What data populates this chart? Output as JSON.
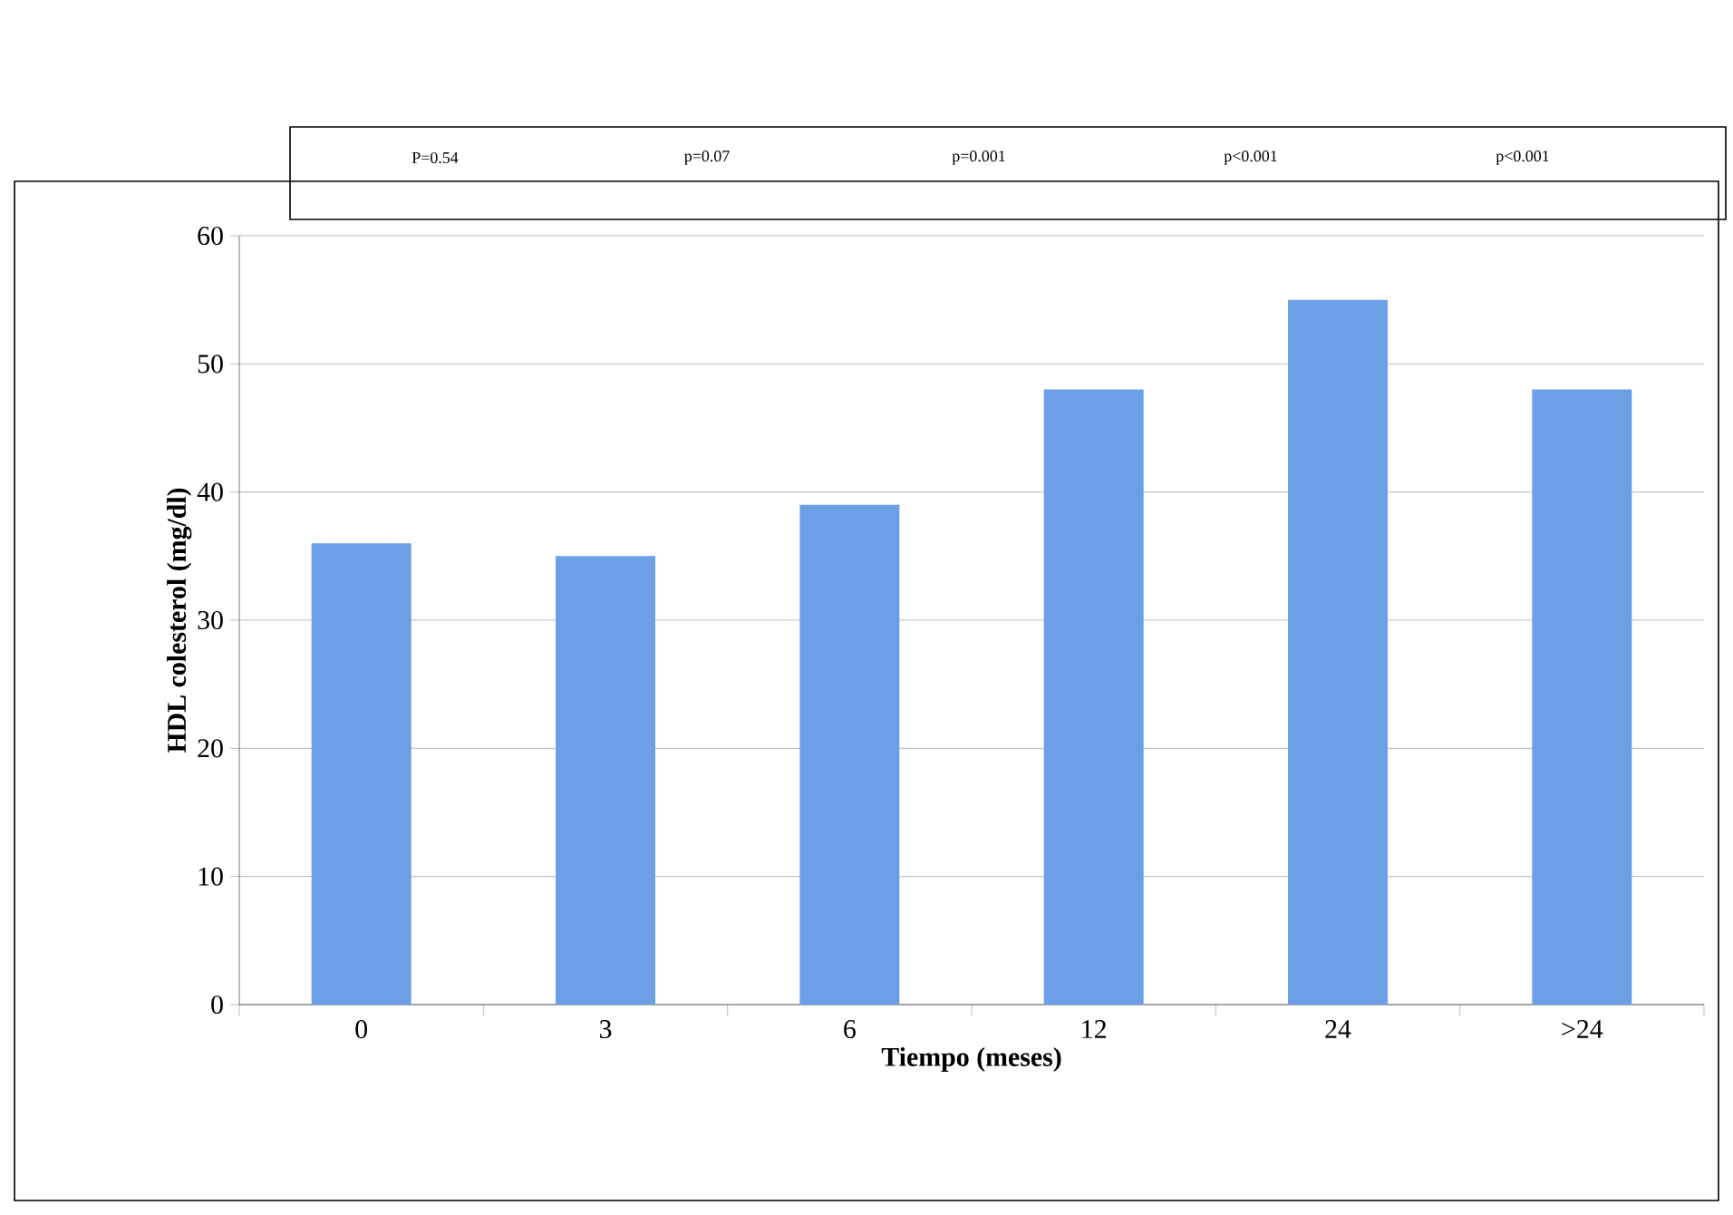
{
  "chart_data": {
    "type": "bar",
    "xlabel": "Tiempo (meses)",
    "ylabel": "HDL colesterol (mg/dl)",
    "categories": [
      "0",
      "3",
      "6",
      "12",
      "24",
      ">24"
    ],
    "values": [
      36,
      35,
      39,
      48,
      55,
      48
    ],
    "color": "#6d9fe6",
    "ylim": [
      0,
      60
    ],
    "yticks": [
      0,
      10,
      20,
      30,
      40,
      50,
      60
    ],
    "grid": "y",
    "annotations": [
      "P=0.54",
      "p=0.07",
      "p=0.001",
      "p<0.001",
      "p<0.001"
    ]
  }
}
